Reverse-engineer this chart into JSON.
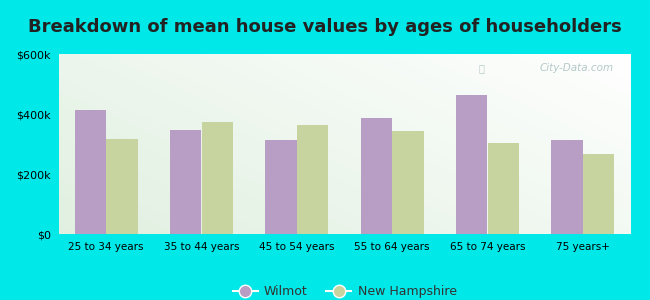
{
  "title": "Breakdown of mean house values by ages of householders",
  "categories": [
    "25 to 34 years",
    "35 to 44 years",
    "45 to 54 years",
    "55 to 64 years",
    "65 to 74 years",
    "75 years+"
  ],
  "wilmot": [
    415000,
    347000,
    315000,
    388000,
    462000,
    312000
  ],
  "new_hampshire": [
    317000,
    375000,
    362000,
    342000,
    305000,
    268000
  ],
  "wilmot_color": "#b89ec4",
  "nh_color": "#c8d4a0",
  "background_outer": "#00e8e8",
  "ylim": [
    0,
    600000
  ],
  "yticks": [
    0,
    200000,
    400000,
    600000
  ],
  "title_fontsize": 13,
  "legend_labels": [
    "Wilmot",
    "New Hampshire"
  ],
  "watermark": "City-Data.com"
}
